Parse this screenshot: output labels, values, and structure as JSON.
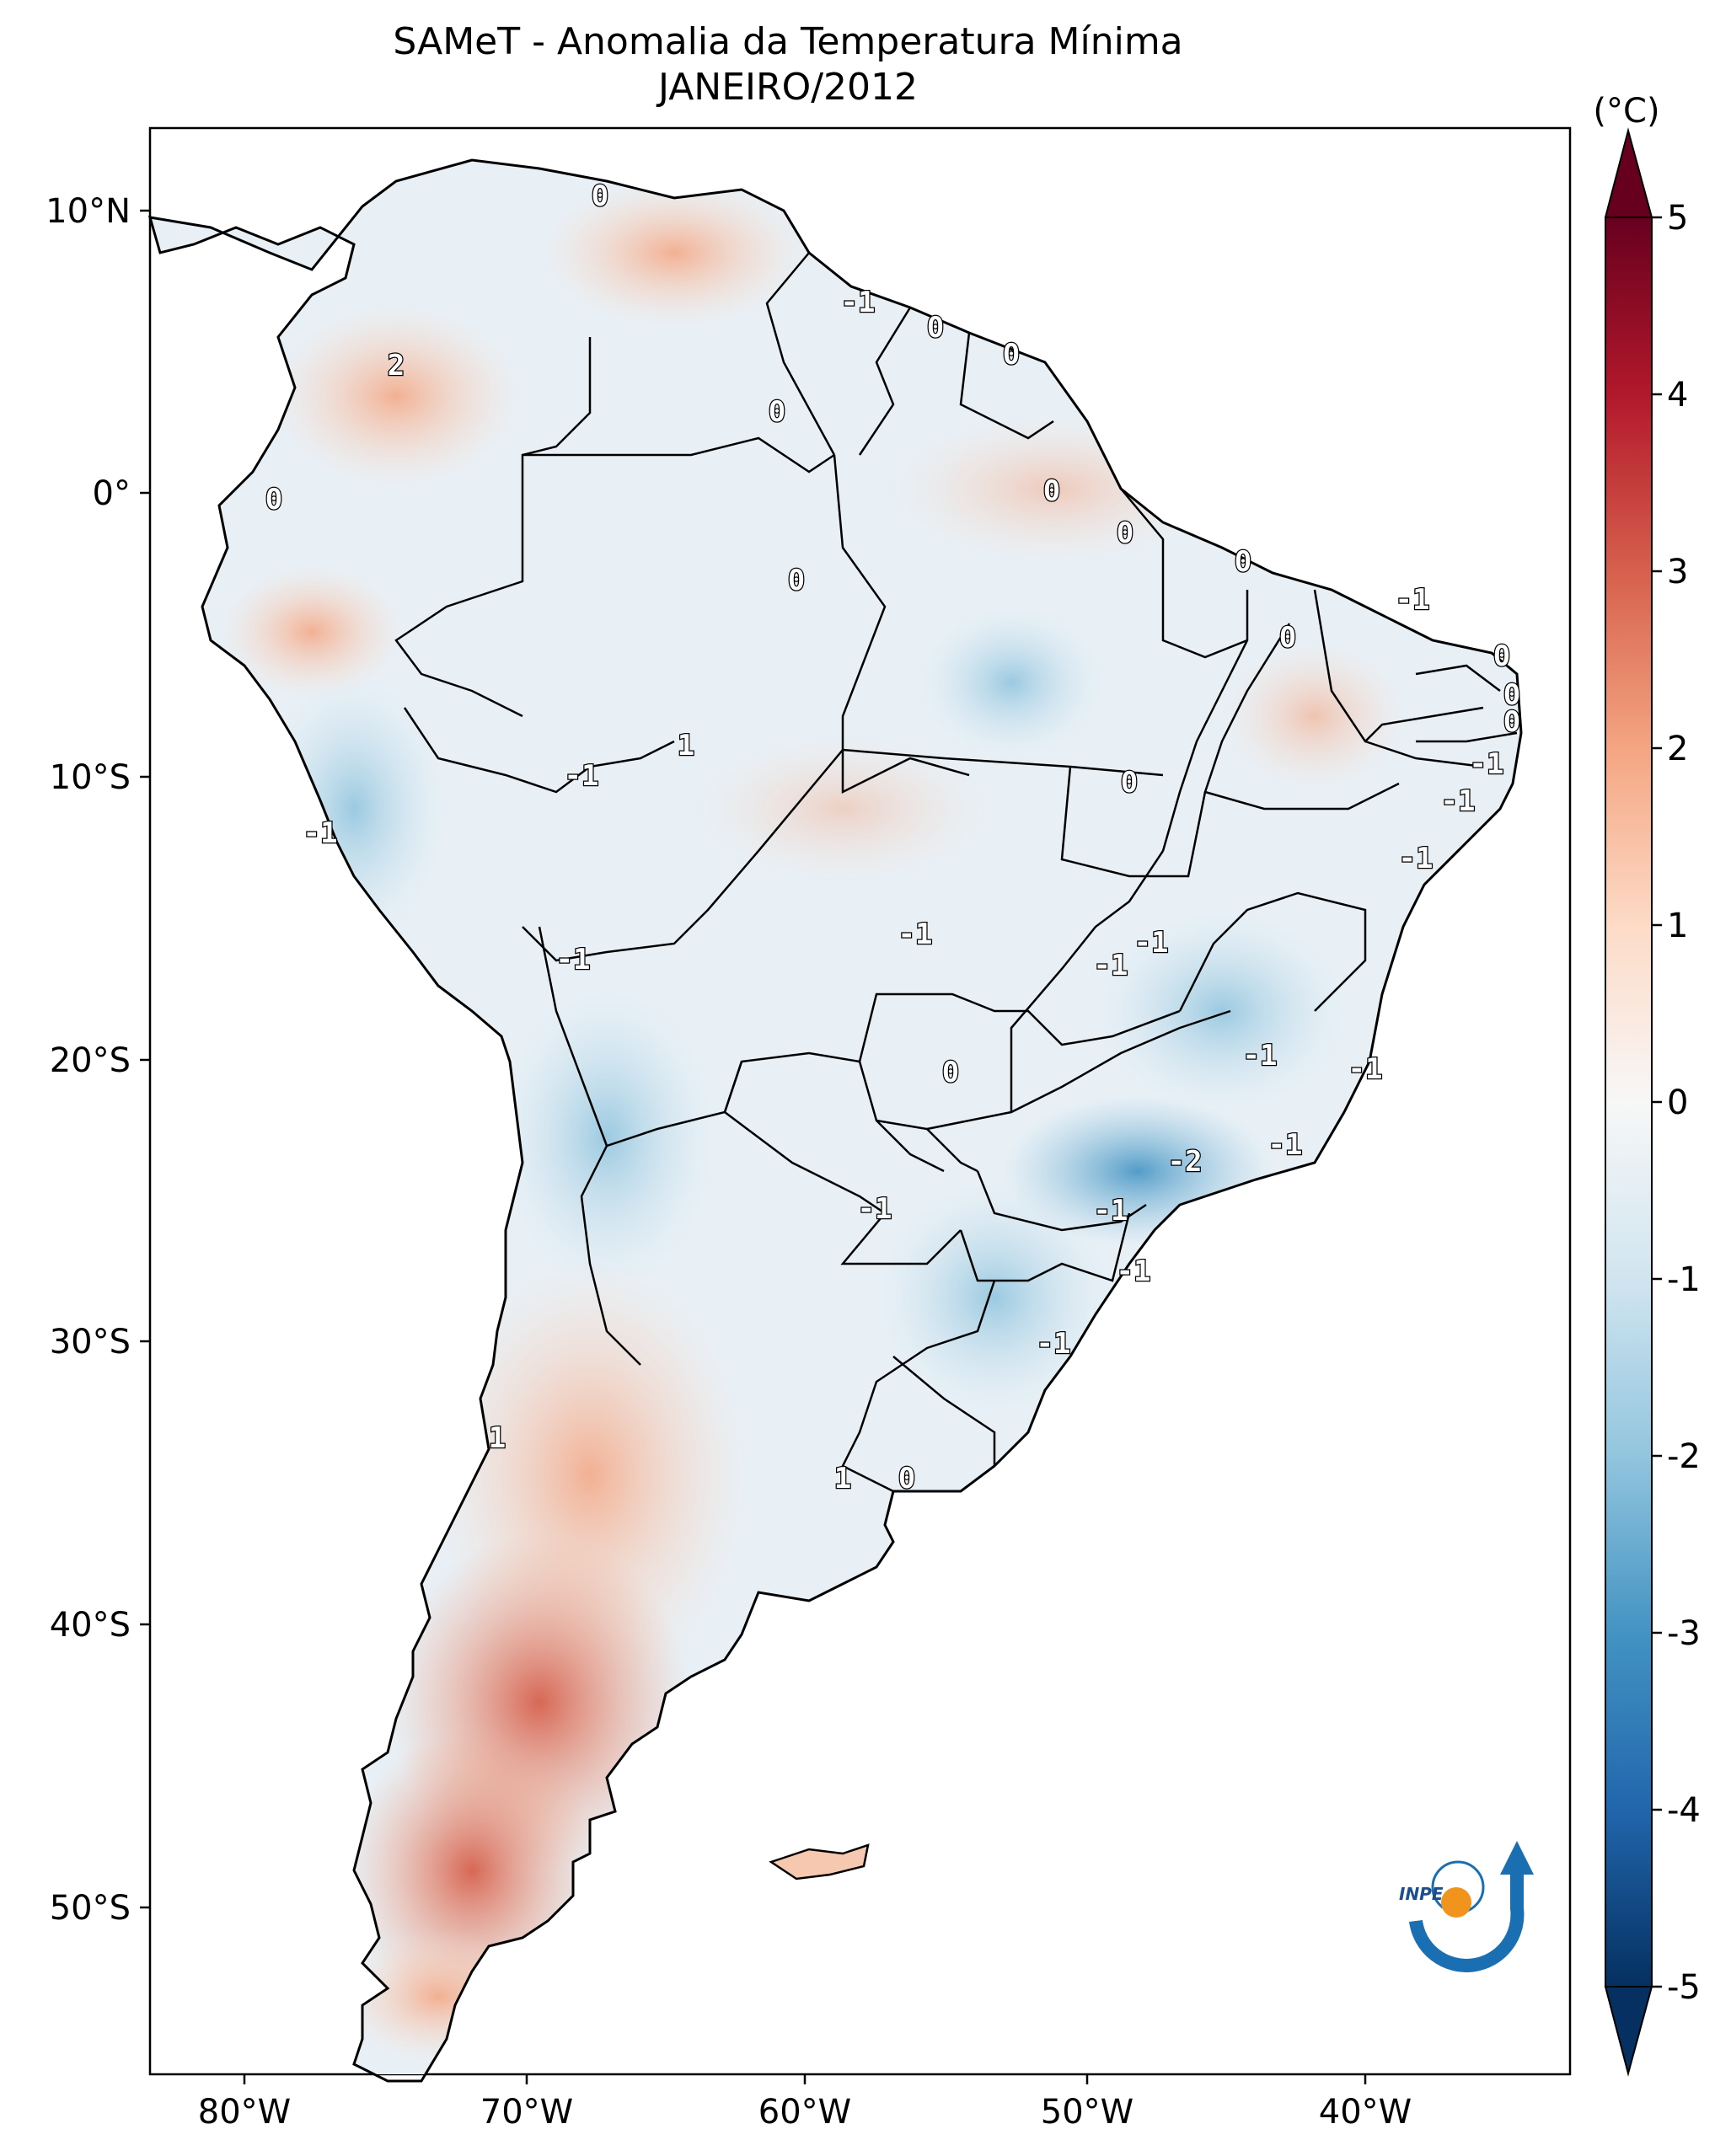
{
  "title": "SAMeT - Anomalia da Temperatura Mínima",
  "subtitle": "JANEIRO/2012",
  "colorbar": {
    "unit": "(°C)",
    "ticks": [
      "5",
      "4",
      "3",
      "2",
      "1",
      "0",
      "-1",
      "-2",
      "-3",
      "-4",
      "-5"
    ],
    "range": [
      -5,
      5
    ],
    "colors": [
      "#67001f",
      "#b2182b",
      "#d6604d",
      "#f4a582",
      "#fddbc7",
      "#f7f7f7",
      "#d1e5f0",
      "#92c5de",
      "#4393c3",
      "#2166ac",
      "#053061"
    ]
  },
  "axes": {
    "lon_labels": [
      "80°W",
      "70°W",
      "60°W",
      "50°W",
      "40°W"
    ],
    "lat_labels": [
      "10°N",
      "0°",
      "10°S",
      "20°S",
      "30°S",
      "40°S",
      "50°S"
    ]
  },
  "contour_labels": [
    "0",
    "2",
    "-1",
    "0",
    "0",
    "0",
    "0",
    "0",
    "0",
    "0",
    "0",
    "-1",
    "0",
    "0",
    "0",
    "0",
    "1",
    "-1",
    "-1",
    "0",
    "-1",
    "-1",
    "-1",
    "-1",
    "-1",
    "-1",
    "-1",
    "0",
    "-1",
    "-2",
    "-1",
    "-1",
    "-1",
    "-1",
    "-1",
    "-1",
    "1",
    "1",
    "0"
  ],
  "logo": {
    "text": "INPE"
  }
}
